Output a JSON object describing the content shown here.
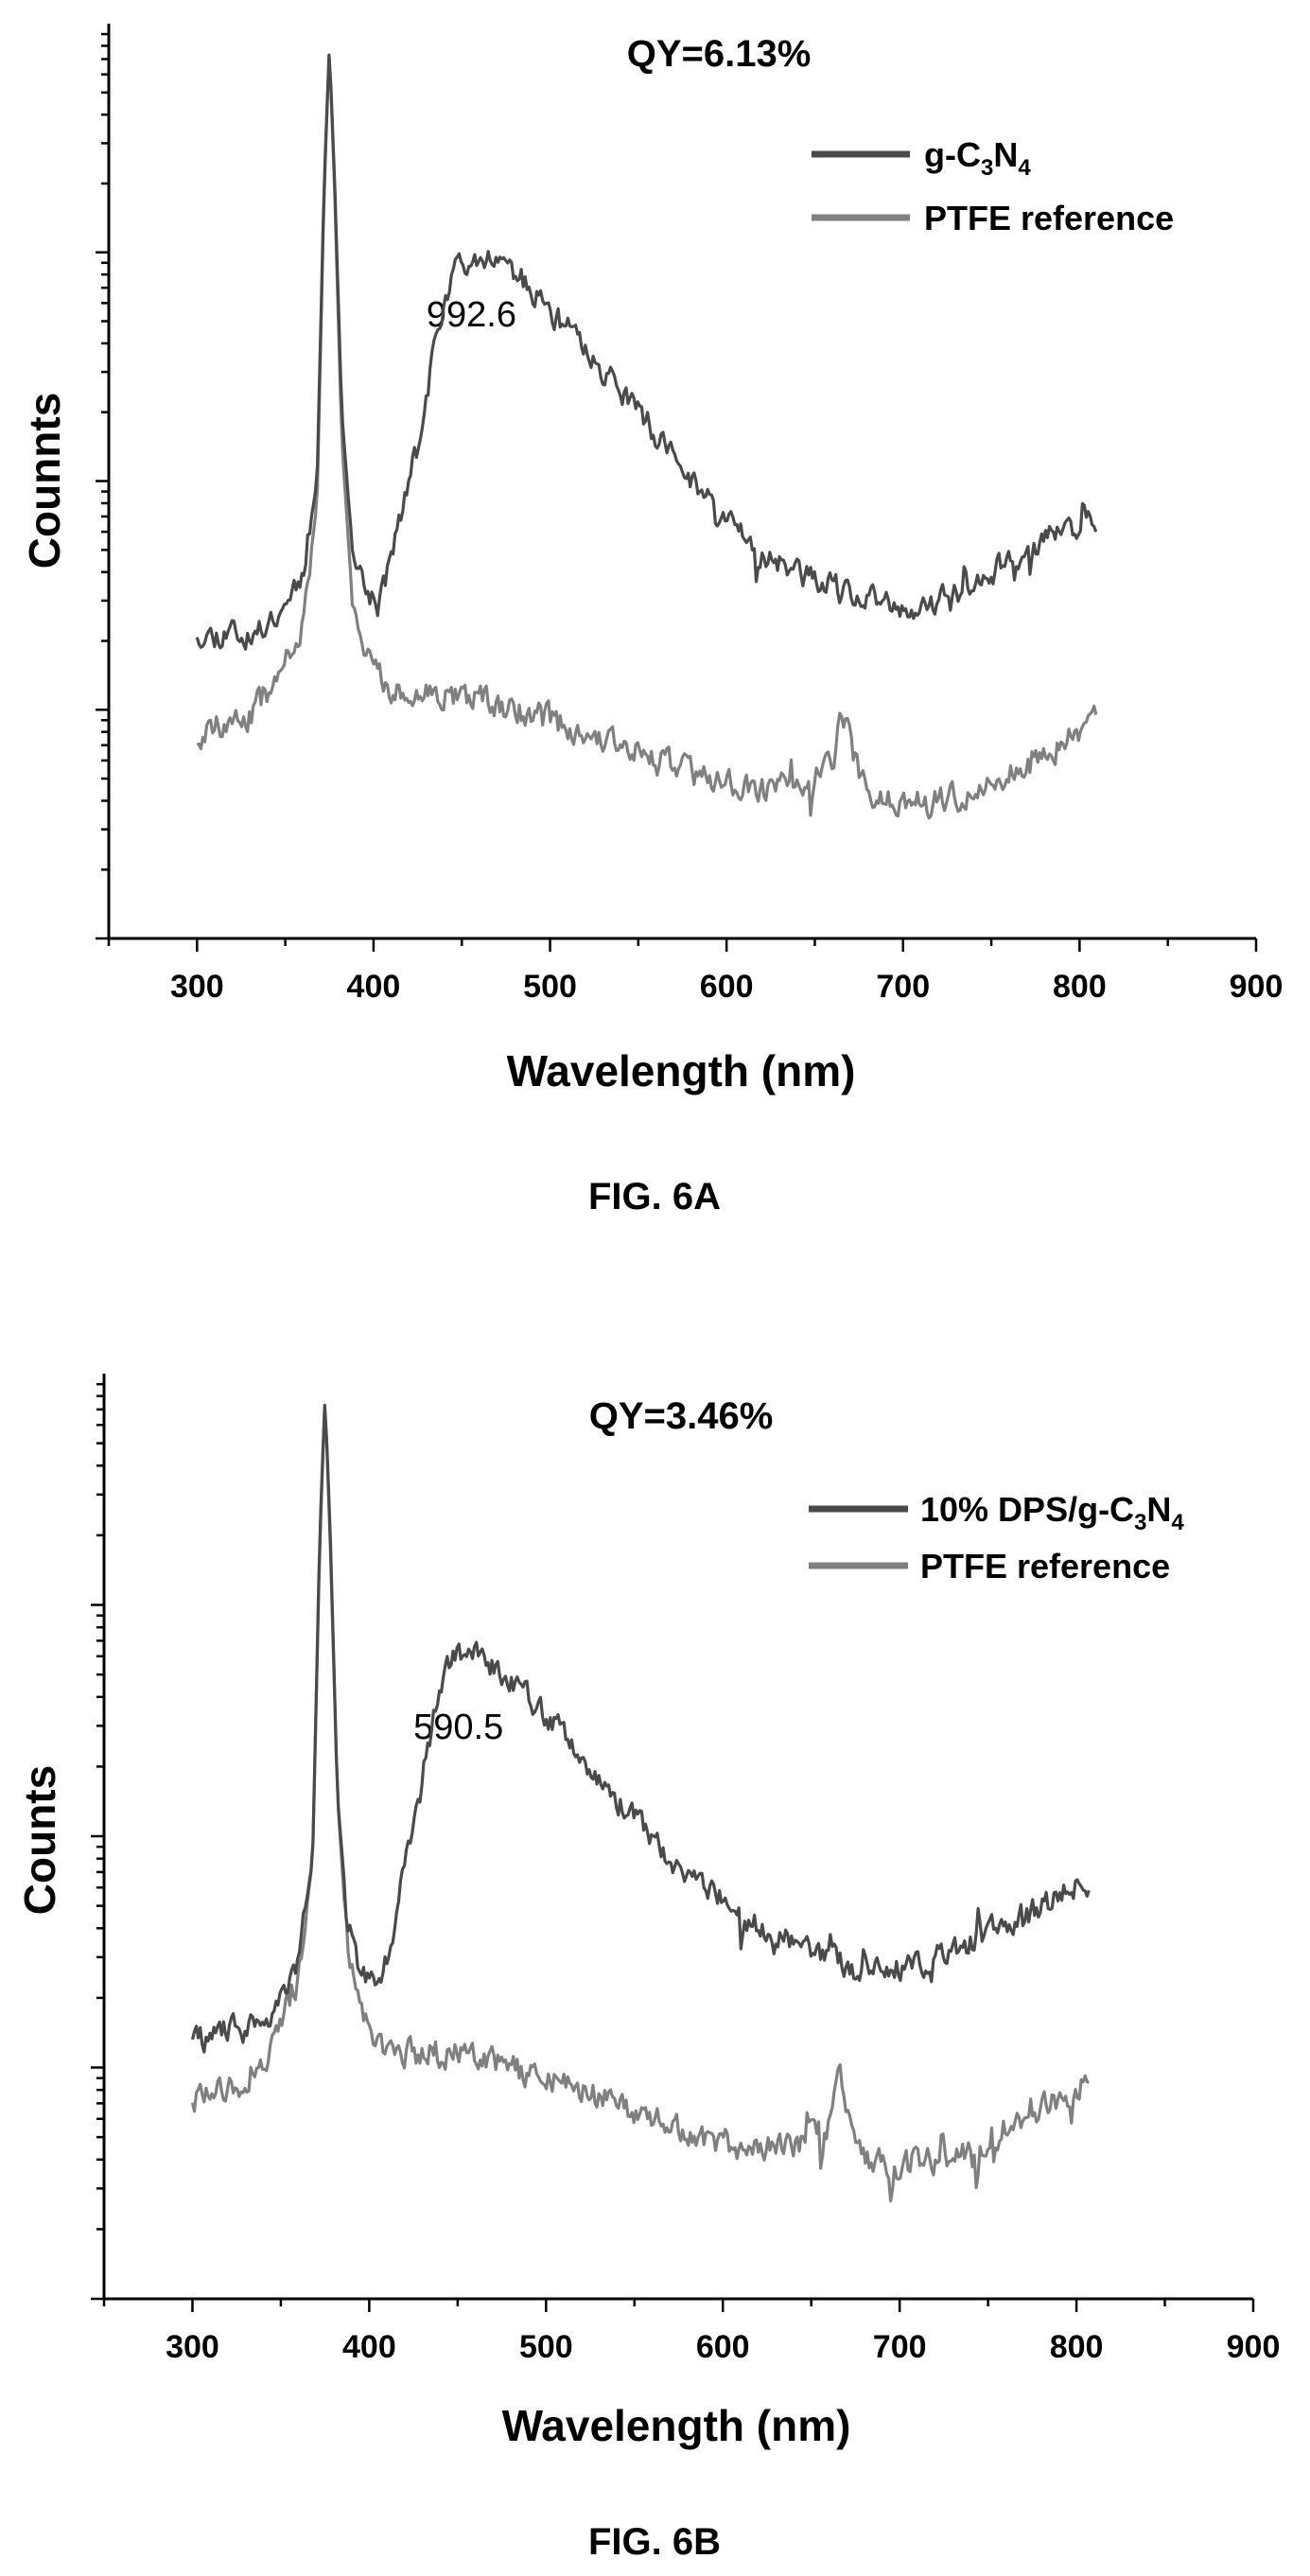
{
  "chart_data": [
    {
      "type": "line",
      "figure_label": "FIG. 6A",
      "annotation_top": "QY=6.13%",
      "peak_label": "992.6",
      "peak_label_x": 430,
      "xlabel": "Wavelength (nm)",
      "ylabel": "Counnts",
      "xlim": [
        250,
        900
      ],
      "xticks": [
        300,
        400,
        500,
        600,
        700,
        800,
        900
      ],
      "yscale": "log",
      "ylim": [
        0.1,
        1000
      ],
      "legend_position": "top-right",
      "series": [
        {
          "name_main": "g-C",
          "name_sub1": "3",
          "name_mid": "N",
          "name_sub2": "4",
          "color": "#4a4a4a",
          "noise": 0.09,
          "points": [
            [
              300,
              2.2
            ],
            [
              310,
              2.1
            ],
            [
              320,
              2.3
            ],
            [
              330,
              2.0
            ],
            [
              340,
              2.4
            ],
            [
              350,
              3.0
            ],
            [
              360,
              4.0
            ],
            [
              368,
              10
            ],
            [
              372,
              200
            ],
            [
              375,
              800
            ],
            [
              378,
              200
            ],
            [
              382,
              20
            ],
            [
              388,
              5
            ],
            [
              395,
              3.5
            ],
            [
              402,
              2.8
            ],
            [
              408,
              4
            ],
            [
              415,
              7
            ],
            [
              425,
              14
            ],
            [
              435,
              40
            ],
            [
              445,
              80
            ],
            [
              455,
              98
            ],
            [
              465,
              98
            ],
            [
              480,
              82
            ],
            [
              500,
              55
            ],
            [
              520,
              38
            ],
            [
              540,
              25
            ],
            [
              560,
              16
            ],
            [
              580,
              10
            ],
            [
              600,
              7
            ],
            [
              620,
              5
            ],
            [
              640,
              4
            ],
            [
              660,
              3.4
            ],
            [
              680,
              3.0
            ],
            [
              700,
              2.8
            ],
            [
              720,
              3.0
            ],
            [
              740,
              3.5
            ],
            [
              760,
              4.5
            ],
            [
              780,
              5.5
            ],
            [
              800,
              6.5
            ],
            [
              810,
              7
            ]
          ]
        },
        {
          "name_main": "PTFE reference",
          "color": "#808080",
          "noise": 0.1,
          "points": [
            [
              300,
              0.75
            ],
            [
              310,
              0.85
            ],
            [
              320,
              0.9
            ],
            [
              330,
              0.95
            ],
            [
              340,
              1.2
            ],
            [
              350,
              1.6
            ],
            [
              360,
              2.5
            ],
            [
              368,
              8
            ],
            [
              372,
              180
            ],
            [
              375,
              800
            ],
            [
              378,
              180
            ],
            [
              382,
              15
            ],
            [
              388,
              3
            ],
            [
              395,
              1.8
            ],
            [
              402,
              1.4
            ],
            [
              410,
              1.2
            ],
            [
              430,
              1.15
            ],
            [
              450,
              1.15
            ],
            [
              460,
              1.2
            ],
            [
              470,
              1.05
            ],
            [
              500,
              0.9
            ],
            [
              530,
              0.75
            ],
            [
              560,
              0.6
            ],
            [
              590,
              0.5
            ],
            [
              610,
              0.45
            ],
            [
              640,
              0.45
            ],
            [
              660,
              0.55
            ],
            [
              665,
              1.0
            ],
            [
              670,
              0.7
            ],
            [
              680,
              0.4
            ],
            [
              700,
              0.38
            ],
            [
              720,
              0.4
            ],
            [
              740,
              0.45
            ],
            [
              760,
              0.55
            ],
            [
              780,
              0.65
            ],
            [
              800,
              0.8
            ],
            [
              810,
              0.95
            ]
          ]
        }
      ]
    },
    {
      "type": "line",
      "figure_label": "FIG. 6B",
      "annotation_top": "QY=3.46%",
      "peak_label": "590.5",
      "peak_label_x": 425,
      "xlabel": "Wavelength (nm)",
      "ylabel": "Counts",
      "xlim": [
        250,
        900
      ],
      "xticks": [
        300,
        400,
        500,
        600,
        700,
        800,
        900
      ],
      "yscale": "log",
      "ylim": [
        0.1,
        1000
      ],
      "legend_position": "top-right",
      "series": [
        {
          "name_main": "10% DPS/g-C",
          "name_sub1": "3",
          "name_mid": "N",
          "name_sub2": "4",
          "color": "#4a4a4a",
          "noise": 0.09,
          "points": [
            [
              300,
              1.4
            ],
            [
              310,
              1.3
            ],
            [
              320,
              1.5
            ],
            [
              330,
              1.4
            ],
            [
              340,
              1.6
            ],
            [
              350,
              2.0
            ],
            [
              360,
              3.0
            ],
            [
              368,
              8
            ],
            [
              372,
              200
            ],
            [
              375,
              800
            ],
            [
              378,
              200
            ],
            [
              382,
              15
            ],
            [
              388,
              4
            ],
            [
              395,
              2.6
            ],
            [
              402,
              2.3
            ],
            [
              410,
              3
            ],
            [
              418,
              6
            ],
            [
              428,
              14
            ],
            [
              438,
              40
            ],
            [
              448,
              60
            ],
            [
              458,
              62
            ],
            [
              470,
              55
            ],
            [
              490,
              40
            ],
            [
              510,
              28
            ],
            [
              530,
              18
            ],
            [
              550,
              12
            ],
            [
              570,
              8
            ],
            [
              590,
              6
            ],
            [
              610,
              4.5
            ],
            [
              630,
              3.8
            ],
            [
              650,
              3.2
            ],
            [
              670,
              2.8
            ],
            [
              690,
              2.7
            ],
            [
              710,
              2.8
            ],
            [
              730,
              3.2
            ],
            [
              750,
              3.8
            ],
            [
              770,
              4.5
            ],
            [
              790,
              5.5
            ],
            [
              808,
              6.5
            ]
          ]
        },
        {
          "name_main": "PTFE reference",
          "color": "#808080",
          "noise": 0.1,
          "points": [
            [
              300,
              0.75
            ],
            [
              310,
              0.8
            ],
            [
              320,
              0.85
            ],
            [
              330,
              0.9
            ],
            [
              340,
              1.1
            ],
            [
              350,
              1.5
            ],
            [
              360,
              2.5
            ],
            [
              368,
              8
            ],
            [
              372,
              180
            ],
            [
              375,
              800
            ],
            [
              378,
              180
            ],
            [
              382,
              15
            ],
            [
              388,
              3
            ],
            [
              395,
              1.8
            ],
            [
              402,
              1.4
            ],
            [
              410,
              1.2
            ],
            [
              430,
              1.15
            ],
            [
              450,
              1.15
            ],
            [
              458,
              1.2
            ],
            [
              470,
              1.05
            ],
            [
              500,
              0.9
            ],
            [
              530,
              0.75
            ],
            [
              560,
              0.6
            ],
            [
              590,
              0.5
            ],
            [
              610,
              0.45
            ],
            [
              640,
              0.45
            ],
            [
              660,
              0.55
            ],
            [
              665,
              1.0
            ],
            [
              670,
              0.7
            ],
            [
              680,
              0.4
            ],
            [
              700,
              0.38
            ],
            [
              720,
              0.4
            ],
            [
              740,
              0.45
            ],
            [
              760,
              0.55
            ],
            [
              780,
              0.65
            ],
            [
              800,
              0.8
            ],
            [
              808,
              0.95
            ]
          ]
        }
      ]
    }
  ]
}
